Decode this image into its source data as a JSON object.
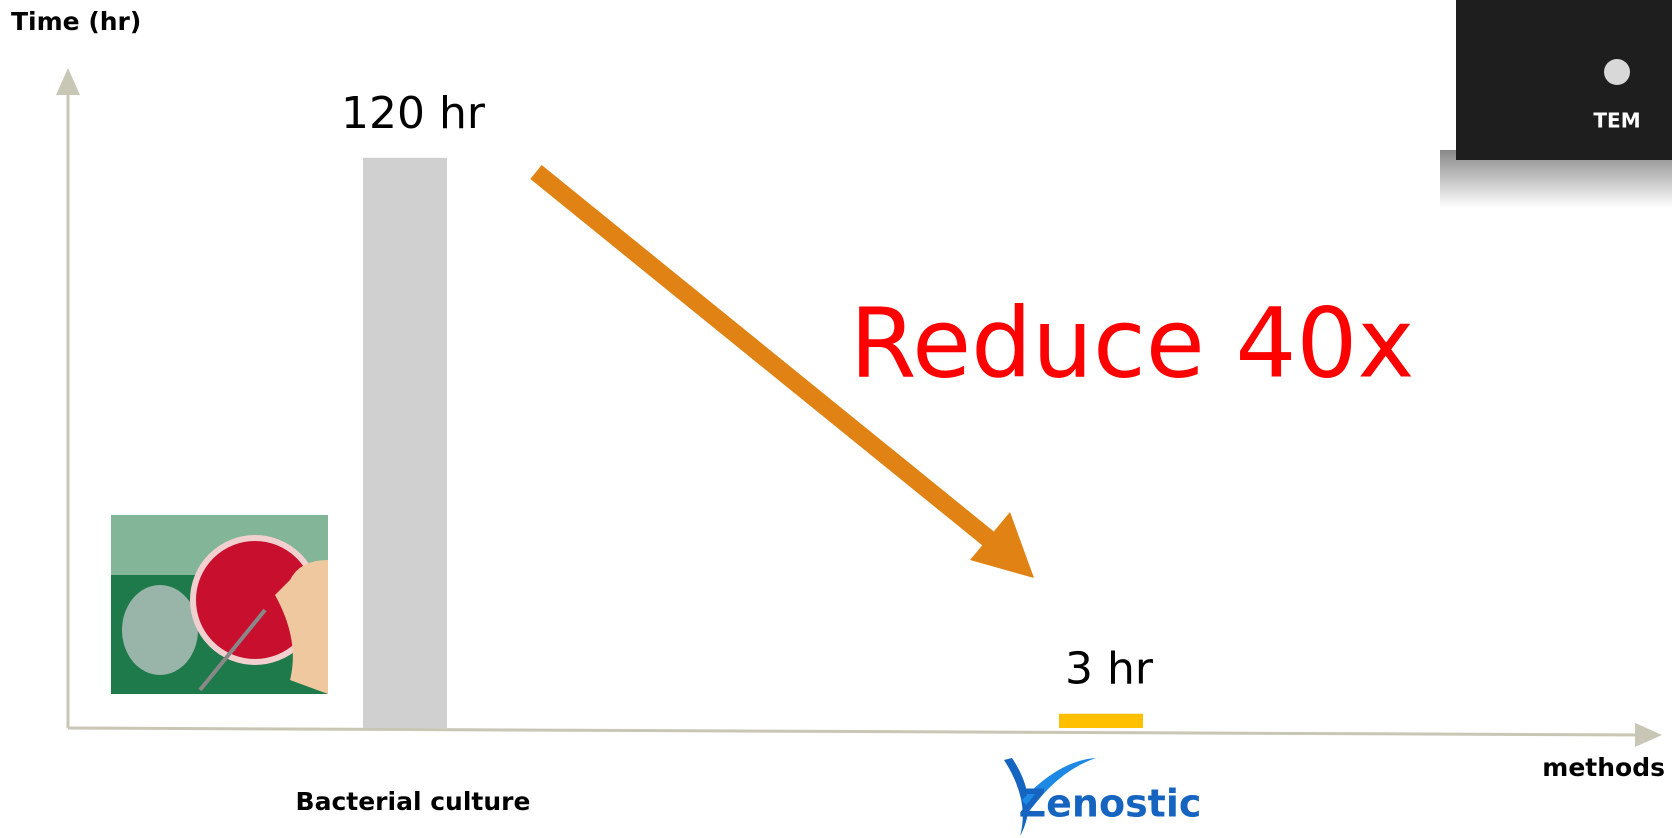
{
  "chart_data": {
    "type": "bar",
    "y_label": "Time (hr)",
    "x_label": "methods",
    "categories": [
      "Bacterial culture",
      "Zenostic"
    ],
    "values": [
      120,
      3
    ],
    "value_labels": [
      "120 hr",
      "3 hr"
    ],
    "colors": [
      "#d0d0d0",
      "#ffc000"
    ],
    "ylim": [
      0,
      137
    ],
    "annotation": "Reduce 40x",
    "annotation_color": "#ff0000",
    "arrow_color": "#e08214"
  },
  "overlay": {
    "label": "TEM"
  }
}
